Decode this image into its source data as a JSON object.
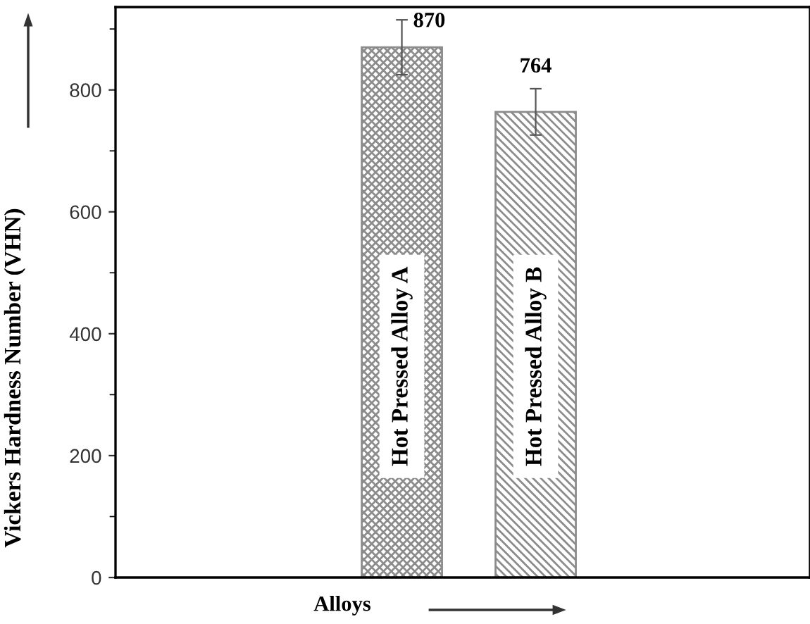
{
  "chart_data": {
    "type": "bar",
    "xlabel": "Alloys",
    "ylabel": "Vickers Hardness Number (VHN)",
    "categories": [
      "Hot Pressed Alloy A",
      "Hot Pressed Alloy B"
    ],
    "values": [
      870,
      764
    ],
    "errors": [
      45,
      38
    ],
    "colors": [
      "#8c8c8c",
      "#8c8c8c"
    ],
    "ylim": [
      0,
      936
    ],
    "yticks": [
      0,
      200,
      400,
      600,
      800
    ],
    "data_labels": true,
    "tick_labels": "y",
    "grid": false,
    "legend": false
  }
}
